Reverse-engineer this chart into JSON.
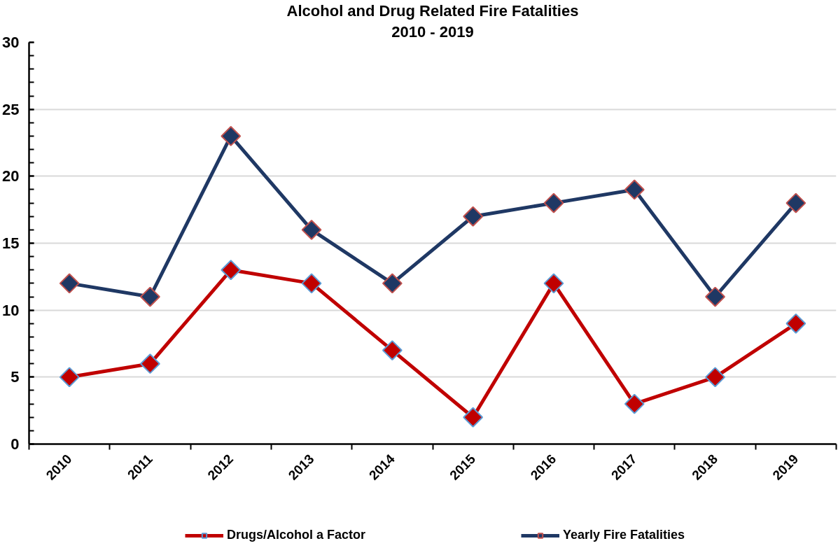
{
  "chart_data": {
    "type": "line",
    "title": "Alcohol and Drug Related Fire Fatalities",
    "subtitle": "2010 - 2019",
    "categories": [
      "2010",
      "2011",
      "2012",
      "2013",
      "2014",
      "2015",
      "2016",
      "2017",
      "2018",
      "2019"
    ],
    "series": [
      {
        "name": "Drugs/Alcohol a Factor",
        "color": "#c00000",
        "values": [
          5,
          6,
          13,
          12,
          7,
          2,
          12,
          3,
          5,
          9
        ]
      },
      {
        "name": "Yearly Fire Fatalities",
        "color": "#1f3864",
        "values": [
          12,
          11,
          23,
          16,
          12,
          17,
          18,
          19,
          11,
          18
        ]
      }
    ],
    "ylim": [
      0,
      30
    ],
    "yticks": [
      0,
      5,
      10,
      15,
      20,
      25,
      30
    ],
    "grid": "y",
    "legend": "bottom",
    "marker": "diamond",
    "line_style": "solid"
  }
}
